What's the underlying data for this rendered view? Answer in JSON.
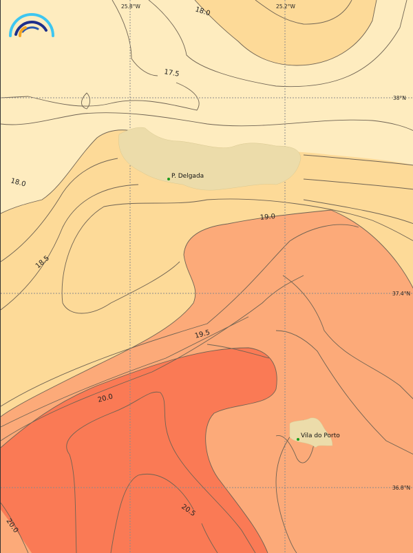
{
  "map": {
    "grid_labels": {
      "lon": [
        "25.8°W",
        "25.2°W"
      ],
      "lat": [
        "38°N",
        "37.4°N",
        "36.8°N"
      ]
    },
    "contour_labels": [
      "18.0",
      "17.5",
      "18.0",
      "18.5",
      "19.0",
      "19.5",
      "20.0",
      "20.5",
      "20.0"
    ],
    "places": [
      "P. Delgada",
      "Vila do Porto"
    ],
    "colors": {
      "band_17_5_18_0": "#feecbf",
      "band_18_0_18_5": "#fdda98",
      "band_19_0_19_5": "#fcaa79",
      "band_20_0_20_5": "#fa7a55",
      "land": "#ecdcaa",
      "city_marker": "#1a9a1a",
      "logo_outer": "#3ec6f0",
      "logo_mid": "#1e2f8a",
      "logo_inner": "#f5a623"
    }
  }
}
